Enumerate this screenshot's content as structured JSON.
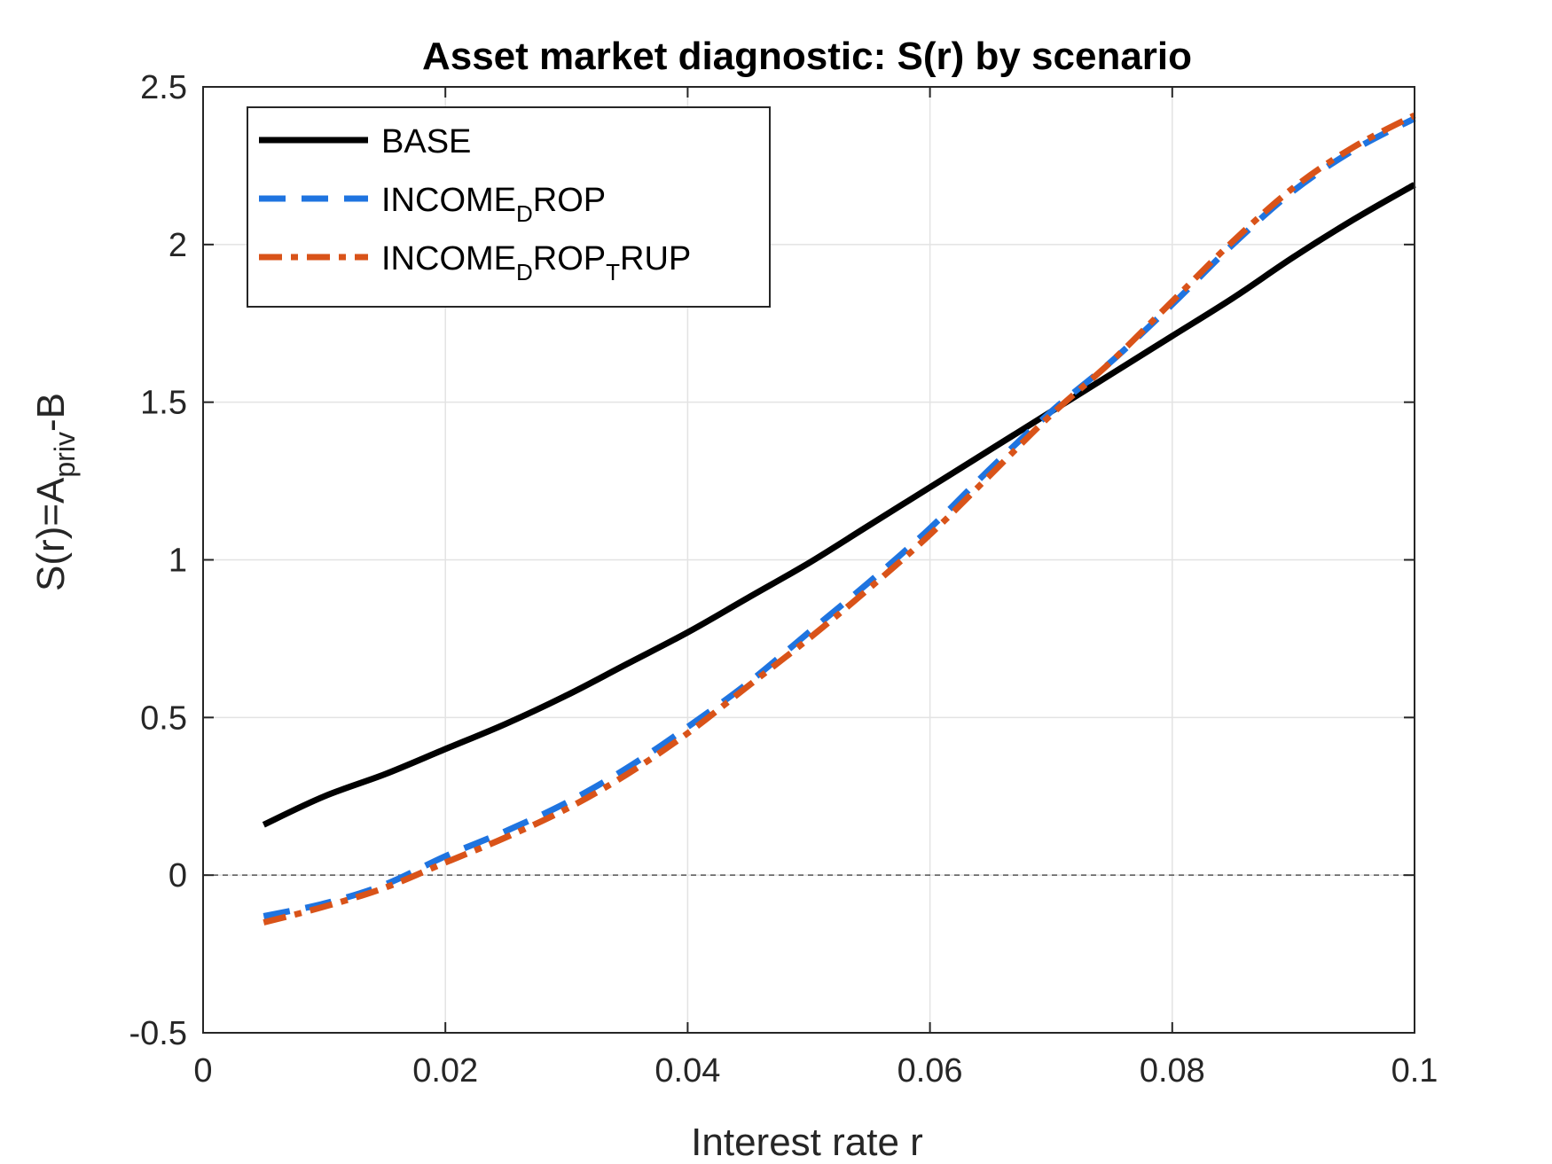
{
  "chart_data": {
    "type": "line",
    "title": "Asset market diagnostic: S(r) by scenario",
    "xlabel": "Interest rate r",
    "ylabel": {
      "pre": "S(r)=A",
      "sub": "priv",
      "post": "-B"
    },
    "xlim": [
      0,
      0.1
    ],
    "ylim": [
      -0.5,
      2.5
    ],
    "xticks": [
      "0",
      "0.02",
      "0.04",
      "0.06",
      "0.08",
      "0.1"
    ],
    "yticks": [
      "-0.5",
      "0",
      "0.5",
      "1",
      "1.5",
      "2",
      "2.5"
    ],
    "grid": true,
    "zero_line": true,
    "legend_position": "top-left",
    "x": [
      0.005,
      0.01,
      0.015,
      0.02,
      0.025,
      0.03,
      0.035,
      0.04,
      0.045,
      0.05,
      0.055,
      0.06,
      0.065,
      0.07,
      0.075,
      0.08,
      0.085,
      0.09,
      0.095,
      0.1
    ],
    "series": [
      {
        "name": "BASE",
        "legend_parts": [
          {
            "t": "BASE",
            "sub": false
          }
        ],
        "color": "#000000",
        "style": "solid",
        "values": [
          0.16,
          0.25,
          0.32,
          0.4,
          0.48,
          0.57,
          0.67,
          0.77,
          0.88,
          0.99,
          1.11,
          1.23,
          1.35,
          1.47,
          1.59,
          1.71,
          1.83,
          1.96,
          2.08,
          2.19
        ]
      },
      {
        "name": "INCOME_DROP",
        "legend_parts": [
          {
            "t": "INCOME",
            "sub": false
          },
          {
            "t": "D",
            "sub": true
          },
          {
            "t": "ROP",
            "sub": false
          }
        ],
        "color": "#1F74E0",
        "style": "dashed",
        "values": [
          -0.13,
          -0.09,
          -0.03,
          0.06,
          0.14,
          0.23,
          0.34,
          0.47,
          0.61,
          0.77,
          0.93,
          1.1,
          1.29,
          1.47,
          1.63,
          1.81,
          2.0,
          2.17,
          2.3,
          2.4
        ]
      },
      {
        "name": "INCOME_DROP_TRUP",
        "legend_parts": [
          {
            "t": "INCOME",
            "sub": false
          },
          {
            "t": "D",
            "sub": true
          },
          {
            "t": "ROP",
            "sub": false
          },
          {
            "t": "T",
            "sub": true
          },
          {
            "t": "RUP",
            "sub": false
          }
        ],
        "color": "#D95319",
        "style": "dashdot",
        "values": [
          -0.15,
          -0.1,
          -0.04,
          0.04,
          0.12,
          0.21,
          0.32,
          0.45,
          0.6,
          0.75,
          0.91,
          1.08,
          1.27,
          1.46,
          1.63,
          1.82,
          2.01,
          2.18,
          2.31,
          2.41
        ]
      }
    ]
  }
}
